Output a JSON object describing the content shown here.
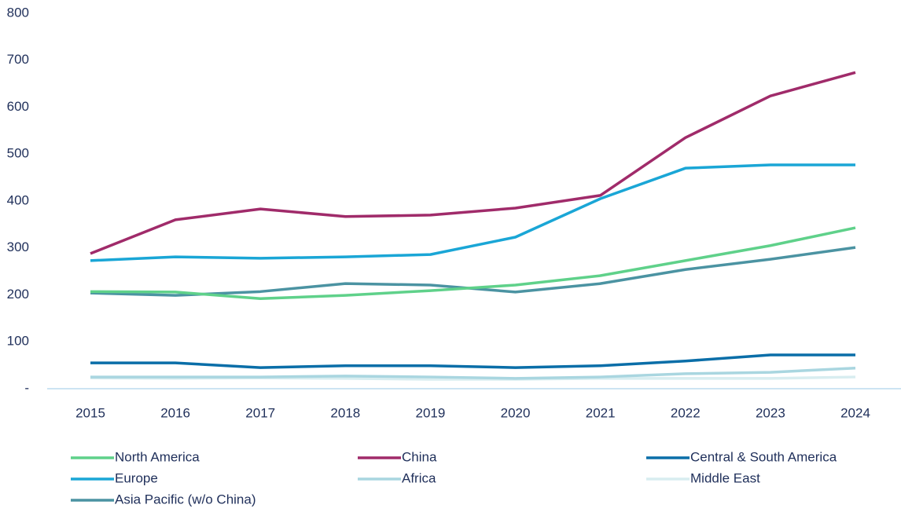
{
  "chart_data": {
    "type": "line",
    "categories": [
      "2015",
      "2016",
      "2017",
      "2018",
      "2019",
      "2020",
      "2021",
      "2022",
      "2023",
      "2024"
    ],
    "series": [
      {
        "name": "North America",
        "color": "#5fd18a",
        "values": [
          207,
          206,
          192,
          199,
          209,
          221,
          241,
          273,
          305,
          343
        ]
      },
      {
        "name": "China",
        "color": "#a02b6a",
        "values": [
          288,
          360,
          383,
          367,
          370,
          385,
          412,
          535,
          624,
          674
        ]
      },
      {
        "name": "Central & South America",
        "color": "#0a6ea8",
        "values": [
          55,
          55,
          45,
          49,
          49,
          45,
          49,
          59,
          72,
          72
        ]
      },
      {
        "name": "Europe",
        "color": "#1aa6d6",
        "values": [
          273,
          281,
          278,
          281,
          286,
          323,
          405,
          470,
          477,
          477
        ]
      },
      {
        "name": "Africa",
        "color": "#a9d6e0",
        "values": [
          25,
          25,
          25,
          27,
          25,
          22,
          25,
          32,
          35,
          44
        ]
      },
      {
        "name": "Middle East",
        "color": "#d8edf0",
        "values": [
          23,
          22,
          23,
          22,
          20,
          20,
          22,
          22,
          22,
          25
        ]
      },
      {
        "name": "Asia Pacific (w/o China)",
        "color": "#4b93a2",
        "values": [
          204,
          199,
          207,
          224,
          221,
          206,
          224,
          254,
          276,
          301
        ]
      }
    ],
    "ylim": [
      0,
      800
    ],
    "yticks": [
      {
        "value": 0,
        "label": "-"
      },
      100,
      200,
      300,
      400,
      500,
      600,
      700,
      800
    ],
    "grid": false
  }
}
